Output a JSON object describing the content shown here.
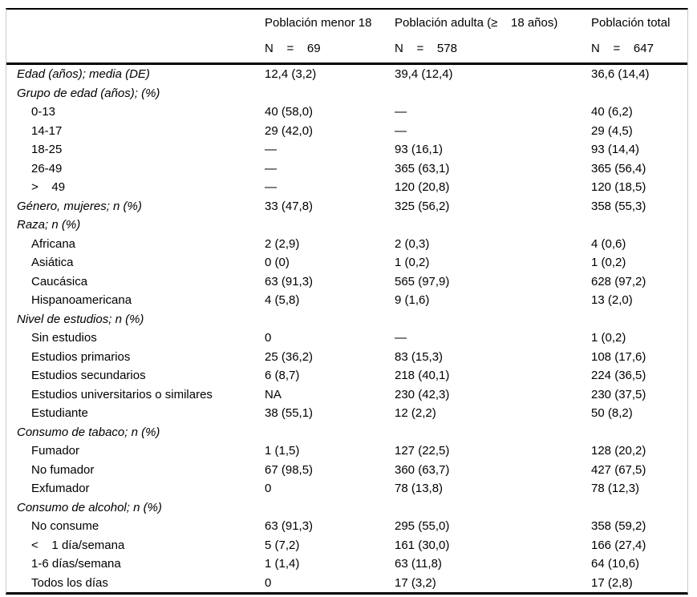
{
  "colors": {
    "background": "#ffffff",
    "text": "#000000",
    "rule": "#000000",
    "frame_side_border": "#c9c9c9"
  },
  "table": {
    "header": {
      "columns": [
        {
          "title": "Población menor 18",
          "n": "N    =    69"
        },
        {
          "title": "Población adulta (≥    18 años)",
          "n": "N    =    578"
        },
        {
          "title": "Población total",
          "n": "N    =    647"
        }
      ]
    },
    "rows": [
      {
        "label": "Edad (años); media (DE)",
        "style": "section",
        "c1": "12,4 (3,2)",
        "c2": "39,4 (12,4)",
        "c3": "36,6 (14,4)"
      },
      {
        "label": "Grupo de edad (años); (%)",
        "style": "section",
        "c1": "",
        "c2": "",
        "c3": ""
      },
      {
        "label": "0-13",
        "style": "item",
        "c1": "40 (58,0)",
        "c2": "—",
        "c3": "40 (6,2)"
      },
      {
        "label": "14-17",
        "style": "item",
        "c1": "29 (42,0)",
        "c2": "—",
        "c3": "29 (4,5)"
      },
      {
        "label": "18-25",
        "style": "item",
        "c1": "—",
        "c2": "93 (16,1)",
        "c3": "93 (14,4)"
      },
      {
        "label": "26-49",
        "style": "item",
        "c1": "—",
        "c2": "365 (63,1)",
        "c3": "365 (56,4)"
      },
      {
        "label": ">    49",
        "style": "item",
        "c1": "—",
        "c2": "120 (20,8)",
        "c3": "120 (18,5)"
      },
      {
        "label": "Género, mujeres; n (%)",
        "style": "section",
        "c1": "33 (47,8)",
        "c2": "325 (56,2)",
        "c3": "358 (55,3)"
      },
      {
        "label": "Raza; n (%)",
        "style": "section",
        "c1": "",
        "c2": "",
        "c3": ""
      },
      {
        "label": "Africana",
        "style": "item",
        "c1": "2 (2,9)",
        "c2": "2 (0,3)",
        "c3": "4 (0,6)"
      },
      {
        "label": "Asiática",
        "style": "item",
        "c1": "0 (0)",
        "c2": "1 (0,2)",
        "c3": "1 (0,2)"
      },
      {
        "label": "Caucásica",
        "style": "item",
        "c1": "63 (91,3)",
        "c2": "565 (97,9)",
        "c3": "628 (97,2)"
      },
      {
        "label": "Hispanoamericana",
        "style": "item",
        "c1": "4 (5,8)",
        "c2": "9 (1,6)",
        "c3": "13 (2,0)"
      },
      {
        "label": "Nivel de estudios; n (%)",
        "style": "section",
        "c1": "",
        "c2": "",
        "c3": ""
      },
      {
        "label": "Sin estudios",
        "style": "item",
        "c1": "0",
        "c2": "—",
        "c3": "1 (0,2)"
      },
      {
        "label": "Estudios primarios",
        "style": "item",
        "c1": "25 (36,2)",
        "c2": "83 (15,3)",
        "c3": "108 (17,6)"
      },
      {
        "label": "Estudios secundarios",
        "style": "item",
        "c1": "6 (8,7)",
        "c2": "218 (40,1)",
        "c3": "224 (36,5)"
      },
      {
        "label": "Estudios universitarios o similares",
        "style": "item",
        "c1": "NA",
        "c2": "230 (42,3)",
        "c3": "230 (37,5)"
      },
      {
        "label": "Estudiante",
        "style": "item",
        "c1": "38 (55,1)",
        "c2": "12 (2,2)",
        "c3": "50 (8,2)"
      },
      {
        "label": "Consumo de tabaco; n (%)",
        "style": "section",
        "c1": "",
        "c2": "",
        "c3": ""
      },
      {
        "label": "Fumador",
        "style": "item",
        "c1": "1 (1,5)",
        "c2": "127 (22,5)",
        "c3": "128 (20,2)"
      },
      {
        "label": "No fumador",
        "style": "item",
        "c1": "67 (98,5)",
        "c2": "360 (63,7)",
        "c3": "427 (67,5)"
      },
      {
        "label": "Exfumador",
        "style": "item",
        "c1": "0",
        "c2": "78 (13,8)",
        "c3": "78 (12,3)"
      },
      {
        "label": "Consumo de alcohol; n (%)",
        "style": "section",
        "c1": "",
        "c2": "",
        "c3": ""
      },
      {
        "label": "No consume",
        "style": "item",
        "c1": "63 (91,3)",
        "c2": "295 (55,0)",
        "c3": "358 (59,2)"
      },
      {
        "label": "<    1 día/semana",
        "style": "item",
        "c1": "5 (7,2)",
        "c2": "161 (30,0)",
        "c3": "166 (27,4)"
      },
      {
        "label": "1-6 días/semana",
        "style": "item",
        "c1": "1 (1,4)",
        "c2": "63 (11,8)",
        "c3": "64 (10,6)"
      },
      {
        "label": "Todos los días",
        "style": "item",
        "c1": "0",
        "c2": "17 (3,2)",
        "c3": "17 (2,8)"
      }
    ]
  }
}
